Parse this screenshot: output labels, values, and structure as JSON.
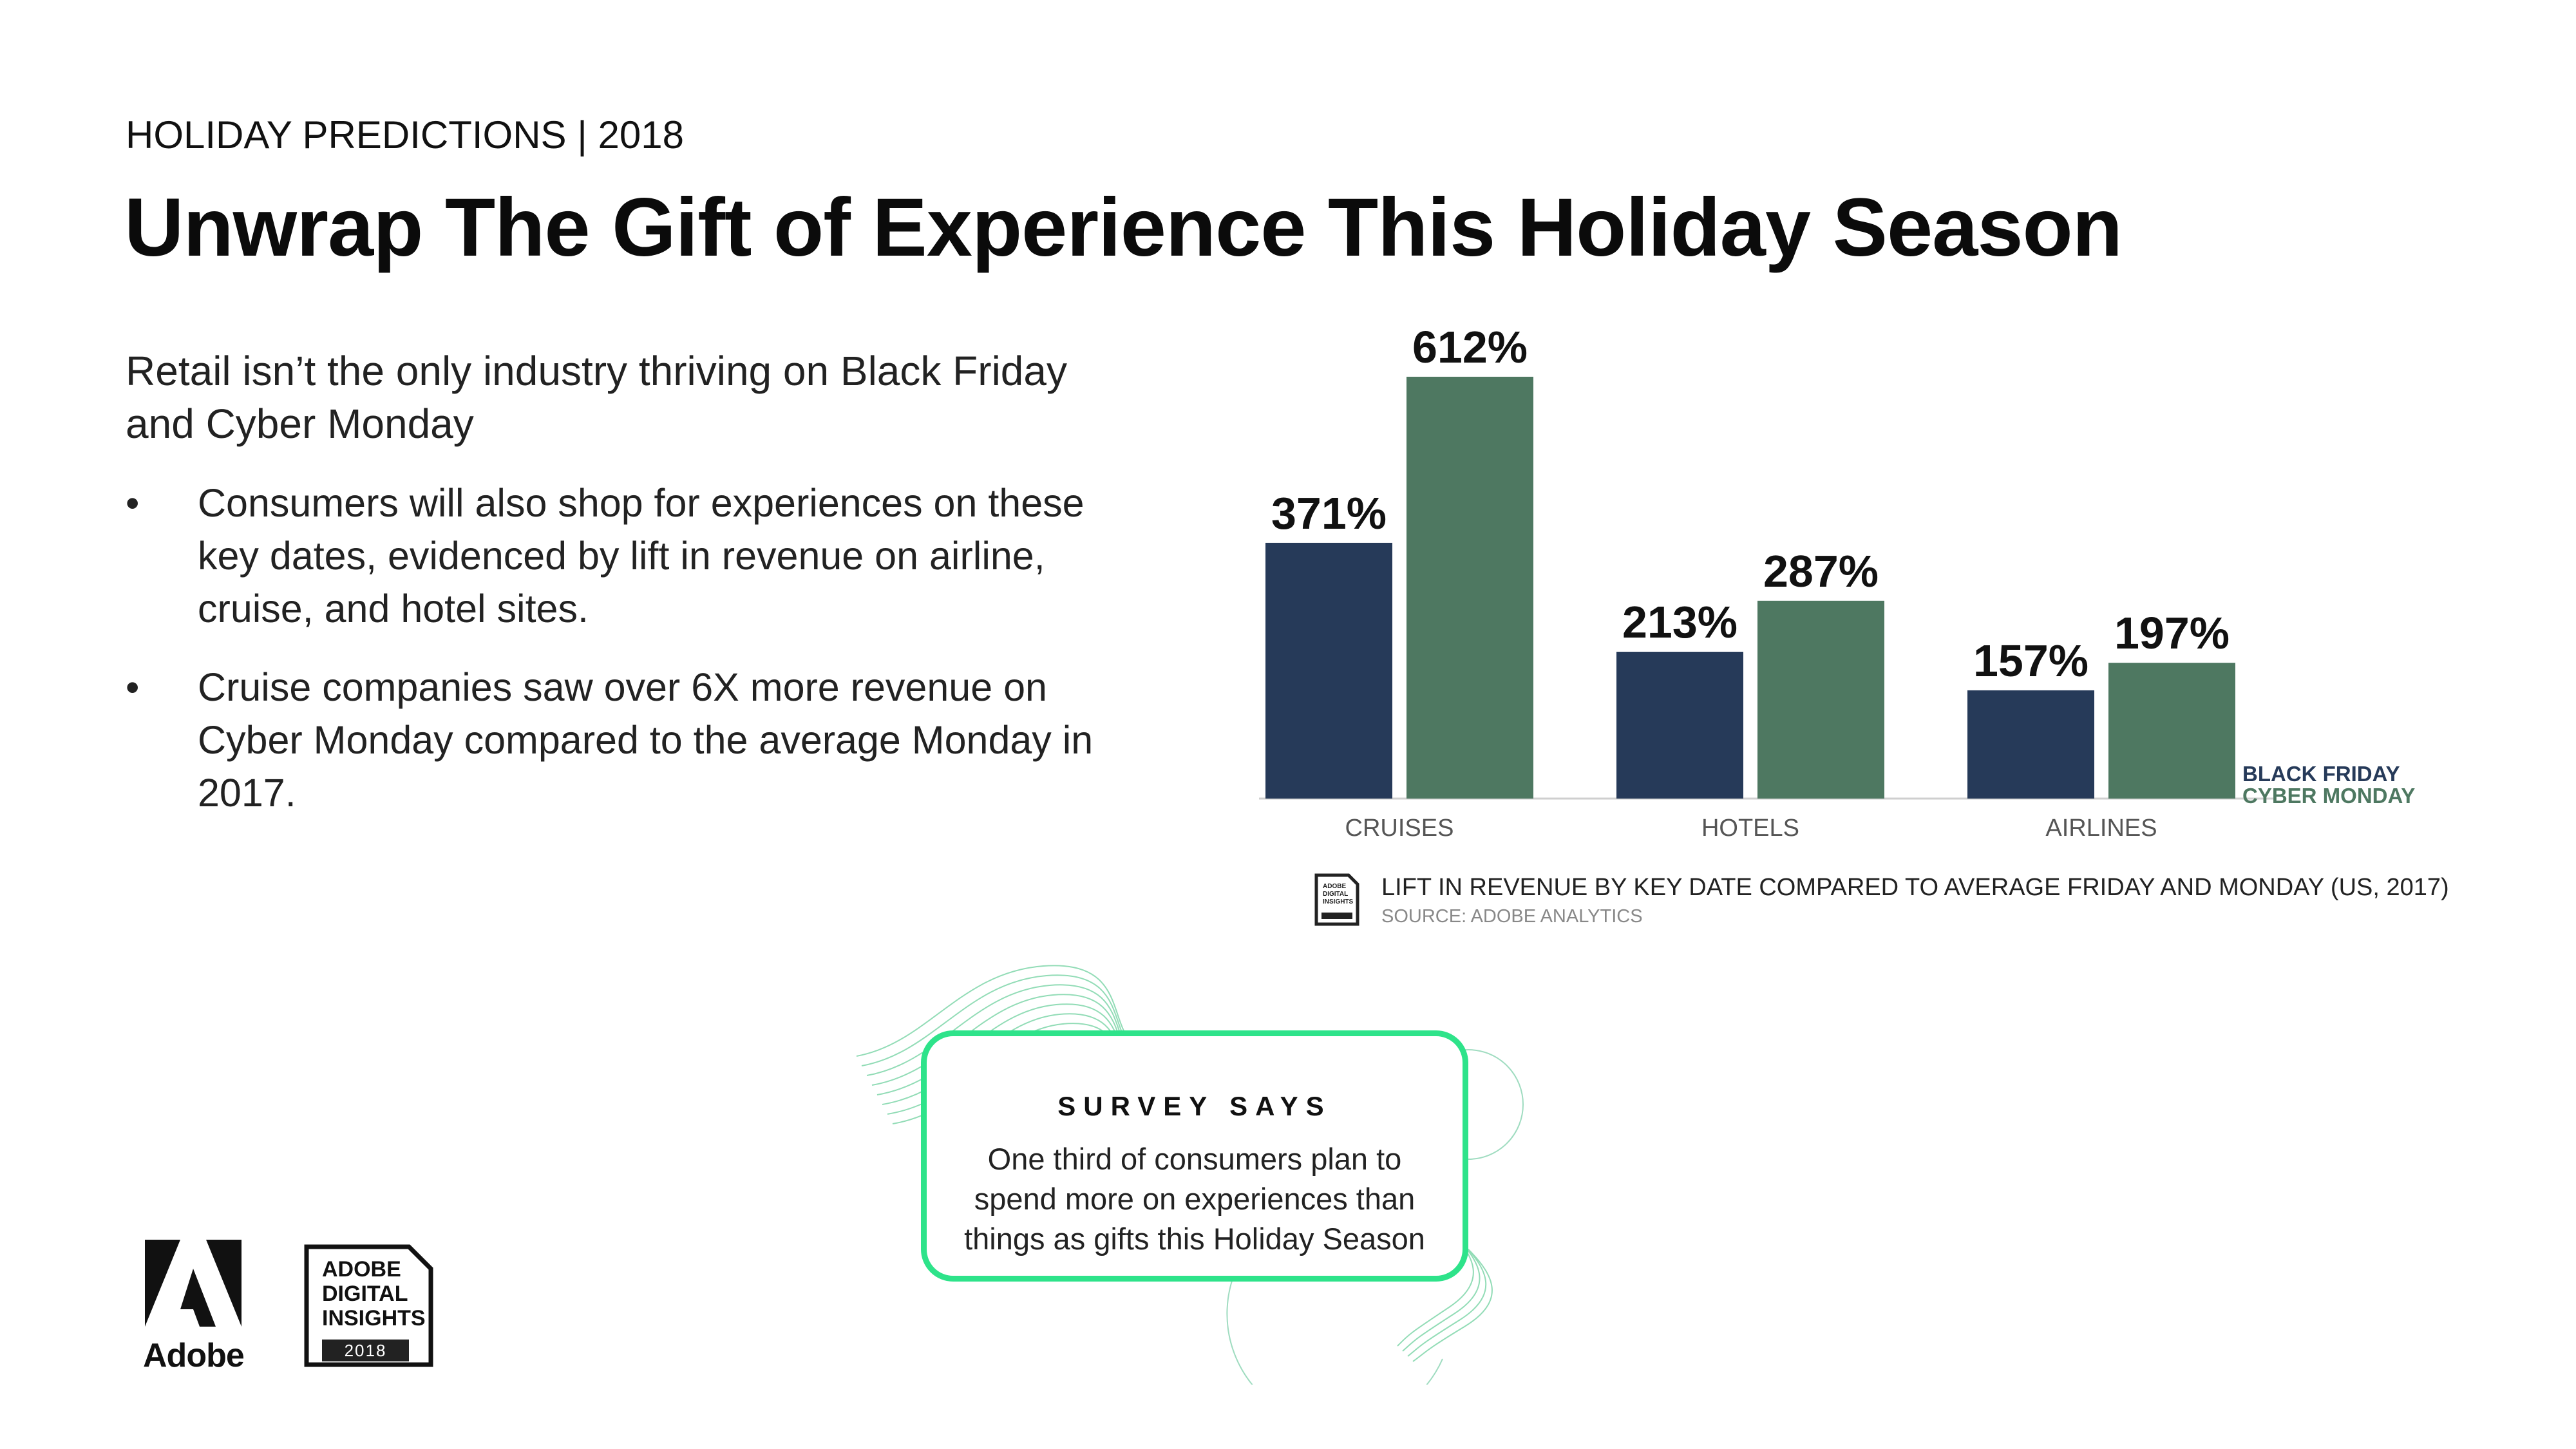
{
  "header": {
    "eyebrow": "HOLIDAY PREDICTIONS | 2018",
    "title": "Unwrap The Gift of Experience This Holiday Season"
  },
  "lead": "Retail isn’t the only industry thriving on Black Friday and Cyber Monday",
  "bullets": [
    "Consumers will also shop for experiences on these key dates, evidenced by lift in revenue on airline, cruise, and hotel sites.",
    "Cruise companies saw over 6X more revenue on Cyber Monday compared to the average Monday in 2017."
  ],
  "bullet_glyph": "•",
  "chart_data": {
    "type": "bar",
    "categories": [
      "CRUISES",
      "HOTELS",
      "AIRLINES"
    ],
    "series": [
      {
        "name": "BLACK FRIDAY",
        "values": [
          371,
          213,
          157
        ],
        "labels": [
          "371%",
          "213%",
          "157%"
        ],
        "color": "#263a59"
      },
      {
        "name": "CYBER MONDAY",
        "values": [
          612,
          287,
          197
        ],
        "labels": [
          "612%",
          "287%",
          "197%"
        ],
        "color": "#4e7861"
      }
    ],
    "ylim": [
      0,
      612
    ],
    "grid": false,
    "legend_position": "bottom-right"
  },
  "caption": {
    "title": "LIFT IN REVENUE BY KEY DATE COMPARED TO AVERAGE FRIDAY AND MONDAY (US, 2017)",
    "source": "SOURCE: ADOBE ANALYTICS",
    "icon_lines": [
      "ADOBE",
      "DIGITAL",
      "INSIGHTS"
    ]
  },
  "survey": {
    "title": "SURVEY SAYS",
    "text": "One third of consumers plan to spend more on experiences than things as gifts this Holiday Season",
    "accent": "#2ee38a"
  },
  "footer": {
    "adobe_word": "Adobe",
    "badge_lines": [
      "ADOBE",
      "DIGITAL",
      "INSIGHTS"
    ],
    "badge_year": "2018"
  }
}
